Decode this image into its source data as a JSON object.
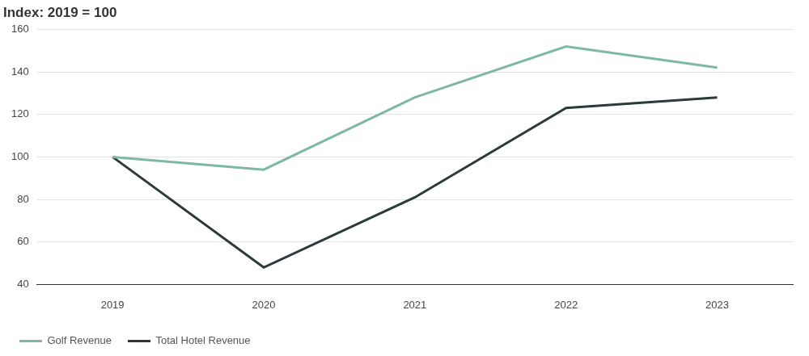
{
  "chart_data": {
    "type": "line",
    "title": "Index: 2019 = 100",
    "categories": [
      "2019",
      "2020",
      "2021",
      "2022",
      "2023"
    ],
    "series": [
      {
        "name": "Golf Revenue",
        "color": "#7db8a5",
        "values": [
          100,
          94,
          128,
          152,
          142
        ]
      },
      {
        "name": "Total Hotel Revenue",
        "color": "#2b3a3a",
        "values": [
          100,
          48,
          81,
          123,
          128
        ]
      }
    ],
    "ylim": [
      40,
      160
    ],
    "yticks": [
      40,
      60,
      80,
      100,
      120,
      140,
      160
    ],
    "grid": true,
    "legend": "bottom"
  }
}
